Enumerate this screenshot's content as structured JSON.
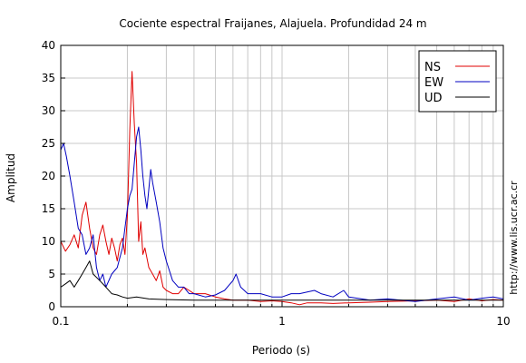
{
  "chart_data": {
    "type": "line",
    "title": "Cociente espectral Fraijanes, Alajuela. Profundidad 24 m",
    "xlabel": "Periodo (s)",
    "ylabel": "Amplitud",
    "x_scale": "log",
    "xlim": [
      0.1,
      10
    ],
    "ylim": [
      0,
      40
    ],
    "x_ticks": [
      0.1,
      1,
      10
    ],
    "x_tick_labels": [
      "0.1",
      "1",
      "10"
    ],
    "y_ticks": [
      0,
      5,
      10,
      15,
      20,
      25,
      30,
      35,
      40
    ],
    "y_tick_labels": [
      "0",
      "5",
      "10",
      "15",
      "20",
      "25",
      "30",
      "35",
      "40"
    ],
    "grid": true,
    "legend_position": "top-right",
    "side_note": "http://www.lis.ucr.ac.cr",
    "series": [
      {
        "name": "NS",
        "color": "#e00000",
        "points": [
          [
            0.1,
            10
          ],
          [
            0.105,
            8.5
          ],
          [
            0.11,
            9.5
          ],
          [
            0.115,
            11
          ],
          [
            0.12,
            9
          ],
          [
            0.125,
            14
          ],
          [
            0.13,
            16
          ],
          [
            0.135,
            12
          ],
          [
            0.14,
            9
          ],
          [
            0.145,
            8
          ],
          [
            0.15,
            11
          ],
          [
            0.155,
            12.5
          ],
          [
            0.16,
            10
          ],
          [
            0.165,
            8
          ],
          [
            0.17,
            10.5
          ],
          [
            0.175,
            9
          ],
          [
            0.18,
            7
          ],
          [
            0.185,
            9.5
          ],
          [
            0.19,
            10.5
          ],
          [
            0.195,
            8
          ],
          [
            0.2,
            14
          ],
          [
            0.205,
            27
          ],
          [
            0.21,
            36
          ],
          [
            0.215,
            28
          ],
          [
            0.22,
            22
          ],
          [
            0.225,
            10
          ],
          [
            0.23,
            13
          ],
          [
            0.235,
            8
          ],
          [
            0.24,
            9
          ],
          [
            0.25,
            6
          ],
          [
            0.26,
            5
          ],
          [
            0.27,
            4
          ],
          [
            0.28,
            5.5
          ],
          [
            0.29,
            3
          ],
          [
            0.3,
            2.5
          ],
          [
            0.32,
            2
          ],
          [
            0.34,
            2
          ],
          [
            0.36,
            3
          ],
          [
            0.38,
            2.5
          ],
          [
            0.4,
            2
          ],
          [
            0.45,
            2
          ],
          [
            0.5,
            1.5
          ],
          [
            0.55,
            1.2
          ],
          [
            0.6,
            1
          ],
          [
            0.7,
            1
          ],
          [
            0.8,
            0.8
          ],
          [
            0.9,
            0.9
          ],
          [
            1.0,
            0.8
          ],
          [
            1.1,
            0.6
          ],
          [
            1.2,
            0.3
          ],
          [
            1.3,
            0.6
          ],
          [
            1.5,
            0.6
          ],
          [
            1.7,
            0.5
          ],
          [
            2.0,
            0.6
          ],
          [
            2.5,
            0.7
          ],
          [
            3.0,
            0.8
          ],
          [
            4.0,
            0.9
          ],
          [
            5.0,
            1.0
          ],
          [
            6.0,
            0.8
          ],
          [
            7.0,
            1.2
          ],
          [
            8.0,
            0.9
          ],
          [
            9.0,
            1.1
          ],
          [
            10.0,
            1.0
          ]
        ]
      },
      {
        "name": "EW",
        "color": "#0000c0",
        "points": [
          [
            0.1,
            24
          ],
          [
            0.103,
            25
          ],
          [
            0.106,
            23
          ],
          [
            0.11,
            20
          ],
          [
            0.115,
            16
          ],
          [
            0.12,
            12
          ],
          [
            0.125,
            11
          ],
          [
            0.13,
            8
          ],
          [
            0.135,
            9
          ],
          [
            0.14,
            11
          ],
          [
            0.145,
            6
          ],
          [
            0.15,
            4
          ],
          [
            0.155,
            5
          ],
          [
            0.16,
            3
          ],
          [
            0.17,
            5
          ],
          [
            0.18,
            6
          ],
          [
            0.19,
            9
          ],
          [
            0.2,
            15
          ],
          [
            0.205,
            17
          ],
          [
            0.21,
            18
          ],
          [
            0.215,
            22
          ],
          [
            0.22,
            26
          ],
          [
            0.225,
            27.5
          ],
          [
            0.23,
            24
          ],
          [
            0.235,
            20
          ],
          [
            0.24,
            17
          ],
          [
            0.245,
            15
          ],
          [
            0.25,
            18
          ],
          [
            0.255,
            21
          ],
          [
            0.26,
            19
          ],
          [
            0.27,
            16
          ],
          [
            0.28,
            13
          ],
          [
            0.29,
            9
          ],
          [
            0.3,
            7
          ],
          [
            0.32,
            4
          ],
          [
            0.34,
            3
          ],
          [
            0.36,
            3
          ],
          [
            0.38,
            2
          ],
          [
            0.4,
            2
          ],
          [
            0.45,
            1.5
          ],
          [
            0.5,
            1.8
          ],
          [
            0.55,
            2.5
          ],
          [
            0.6,
            4
          ],
          [
            0.62,
            5
          ],
          [
            0.65,
            3
          ],
          [
            0.7,
            2
          ],
          [
            0.8,
            2
          ],
          [
            0.9,
            1.5
          ],
          [
            1.0,
            1.5
          ],
          [
            1.1,
            2
          ],
          [
            1.2,
            2
          ],
          [
            1.4,
            2.5
          ],
          [
            1.5,
            2
          ],
          [
            1.7,
            1.5
          ],
          [
            1.9,
            2.5
          ],
          [
            2.0,
            1.5
          ],
          [
            2.5,
            1
          ],
          [
            3.0,
            1.2
          ],
          [
            4.0,
            0.8
          ],
          [
            5.0,
            1.2
          ],
          [
            6.0,
            1.5
          ],
          [
            7.0,
            1.0
          ],
          [
            8.0,
            1.3
          ],
          [
            9.0,
            1.5
          ],
          [
            10.0,
            1.2
          ]
        ]
      },
      {
        "name": "UD",
        "color": "#000000",
        "points": [
          [
            0.1,
            3
          ],
          [
            0.105,
            3.5
          ],
          [
            0.11,
            4
          ],
          [
            0.115,
            3
          ],
          [
            0.12,
            4
          ],
          [
            0.125,
            5
          ],
          [
            0.13,
            6
          ],
          [
            0.135,
            7
          ],
          [
            0.14,
            5
          ],
          [
            0.15,
            4
          ],
          [
            0.16,
            3
          ],
          [
            0.17,
            2
          ],
          [
            0.18,
            1.8
          ],
          [
            0.19,
            1.5
          ],
          [
            0.2,
            1.3
          ],
          [
            0.22,
            1.5
          ],
          [
            0.25,
            1.2
          ],
          [
            0.3,
            1.1
          ],
          [
            0.4,
            1.0
          ],
          [
            0.5,
            1.0
          ],
          [
            0.7,
            1.0
          ],
          [
            1.0,
            1.0
          ],
          [
            1.5,
            1.0
          ],
          [
            2.0,
            1.0
          ],
          [
            3.0,
            1.0
          ],
          [
            5.0,
            1.0
          ],
          [
            7.0,
            1.0
          ],
          [
            10.0,
            1.0
          ]
        ]
      }
    ]
  }
}
